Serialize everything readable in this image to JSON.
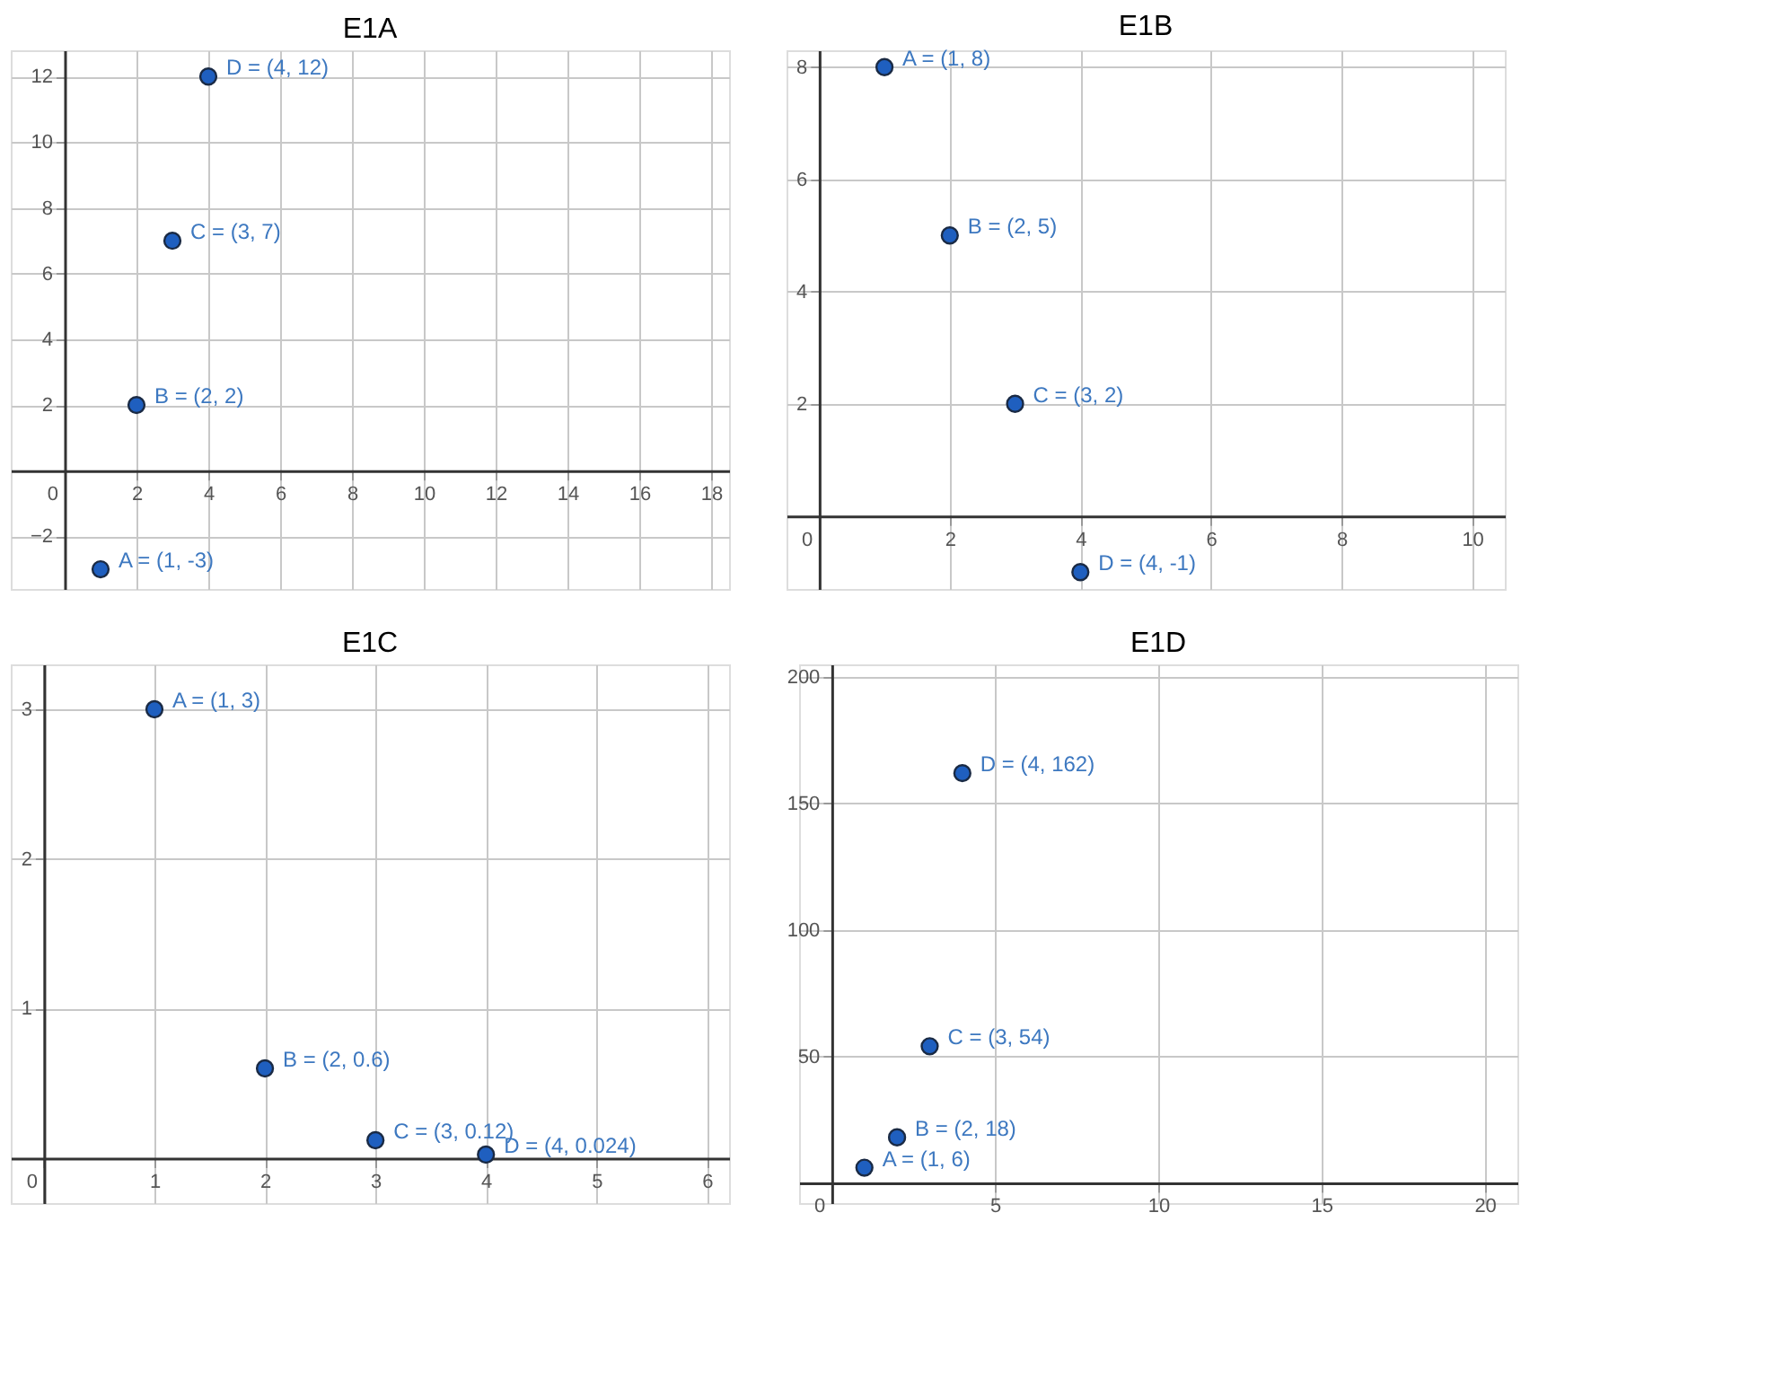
{
  "chart_data": [
    {
      "type": "scatter",
      "title": "E1A",
      "marker": "circle",
      "grid": true,
      "series": [
        {
          "color": "#1f5fbf",
          "x": [
            1,
            2,
            3,
            4
          ],
          "values": [
            -3,
            2,
            7,
            12
          ]
        }
      ],
      "annotations": [
        {
          "text": "A = (1, -3)",
          "x": 1,
          "y": -3
        },
        {
          "text": "B = (2, 2)",
          "x": 2,
          "y": 2
        },
        {
          "text": "C = (3, 7)",
          "x": 3,
          "y": 7
        },
        {
          "text": "D = (4, 12)",
          "x": 4,
          "y": 12
        }
      ],
      "xlim": [
        -1.5,
        18.5
      ],
      "ylim": [
        -3.6,
        12.8
      ],
      "xticks": [
        0,
        2,
        4,
        6,
        8,
        10,
        12,
        14,
        16,
        18
      ],
      "yticks": [
        -2,
        2,
        4,
        6,
        8,
        10,
        12
      ]
    },
    {
      "type": "scatter",
      "title": "E1B",
      "marker": "circle",
      "grid": true,
      "series": [
        {
          "color": "#1f5fbf",
          "x": [
            1,
            2,
            3,
            4
          ],
          "values": [
            8,
            5,
            2,
            -1
          ]
        }
      ],
      "annotations": [
        {
          "text": "A = (1, 8)",
          "x": 1,
          "y": 8
        },
        {
          "text": "B = (2, 5)",
          "x": 2,
          "y": 5
        },
        {
          "text": "C = (3, 2)",
          "x": 3,
          "y": 2
        },
        {
          "text": "D = (4, -1)",
          "x": 4,
          "y": -1
        }
      ],
      "xlim": [
        -0.5,
        10.5
      ],
      "ylim": [
        -1.3,
        8.3
      ],
      "xticks": [
        0,
        2,
        4,
        6,
        8,
        10
      ],
      "yticks": [
        2,
        4,
        6,
        8
      ]
    },
    {
      "type": "scatter",
      "title": "E1C",
      "marker": "circle",
      "grid": true,
      "series": [
        {
          "color": "#1f5fbf",
          "x": [
            1,
            2,
            3,
            4
          ],
          "values": [
            3,
            0.6,
            0.12,
            0.024
          ]
        }
      ],
      "annotations": [
        {
          "text": "A = (1, 3)",
          "x": 1,
          "y": 3
        },
        {
          "text": "B = (2, 0.6)",
          "x": 2,
          "y": 0.6
        },
        {
          "text": "C = (3, 0.12)",
          "x": 3,
          "y": 0.12
        },
        {
          "text": "D = (4, 0.024)",
          "x": 4,
          "y": 0.024
        }
      ],
      "xlim": [
        -0.3,
        6.2
      ],
      "ylim": [
        -0.3,
        3.3
      ],
      "xticks": [
        0,
        1,
        2,
        3,
        4,
        5,
        6
      ],
      "yticks": [
        1,
        2,
        3
      ]
    },
    {
      "type": "scatter",
      "title": "E1D",
      "marker": "circle",
      "grid": true,
      "series": [
        {
          "color": "#1f5fbf",
          "x": [
            1,
            2,
            3,
            4
          ],
          "values": [
            6,
            18,
            54,
            162
          ]
        }
      ],
      "annotations": [
        {
          "text": "A = (1, 6)",
          "x": 1,
          "y": 6
        },
        {
          "text": "B = (2, 18)",
          "x": 2,
          "y": 18
        },
        {
          "text": "C = (3, 54)",
          "x": 3,
          "y": 54
        },
        {
          "text": "D = (4, 162)",
          "x": 4,
          "y": 162
        }
      ],
      "xlim": [
        -1,
        21
      ],
      "ylim": [
        -8,
        205
      ],
      "xticks": [
        0,
        5,
        10,
        15,
        20
      ],
      "yticks": [
        50,
        100,
        150,
        200
      ]
    }
  ]
}
